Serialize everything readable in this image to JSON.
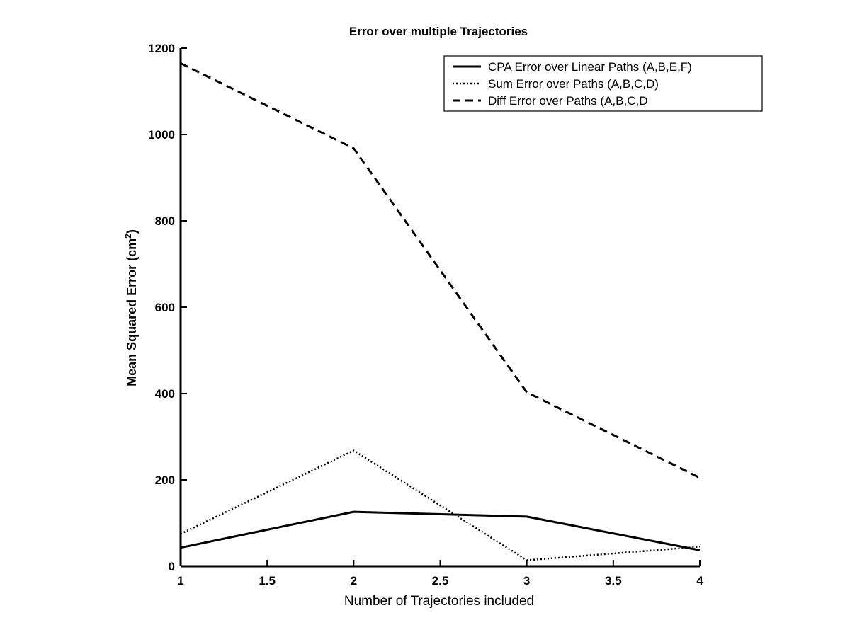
{
  "chart_data": {
    "type": "line",
    "title": "Error over multiple Trajectories",
    "xlabel": "Number of Trajectories included",
    "ylabel": "Mean Squared Error (cm",
    "ylabel_superscript": "2",
    "ylabel_suffix": ")",
    "xlim": [
      1,
      4
    ],
    "ylim": [
      0,
      1200
    ],
    "xticks": [
      1,
      1.5,
      2,
      2.5,
      3,
      3.5,
      4
    ],
    "xtick_labels": [
      "1",
      "1.5",
      "2",
      "2.5",
      "3",
      "3.5",
      "4"
    ],
    "yticks": [
      0,
      200,
      400,
      600,
      800,
      1000,
      1200
    ],
    "ytick_labels": [
      "0",
      "200",
      "400",
      "600",
      "800",
      "1000",
      "1200"
    ],
    "grid": false,
    "legend_position": "top-right",
    "x": [
      1,
      2,
      3,
      4
    ],
    "series": [
      {
        "name": "CPA Error over Linear Paths (A,B,E,F)",
        "style": "solid",
        "values": [
          43,
          126,
          115,
          37
        ]
      },
      {
        "name": "Sum Error over Paths (A,B,C,D)",
        "style": "dotted",
        "values": [
          75,
          268,
          14,
          45
        ]
      },
      {
        "name": "Diff Error over Paths (A,B,C,D",
        "style": "dashed",
        "values": [
          1165,
          968,
          403,
          205
        ]
      }
    ],
    "colors": {
      "line": "#000000",
      "axis": "#000000",
      "background": "#ffffff"
    }
  }
}
